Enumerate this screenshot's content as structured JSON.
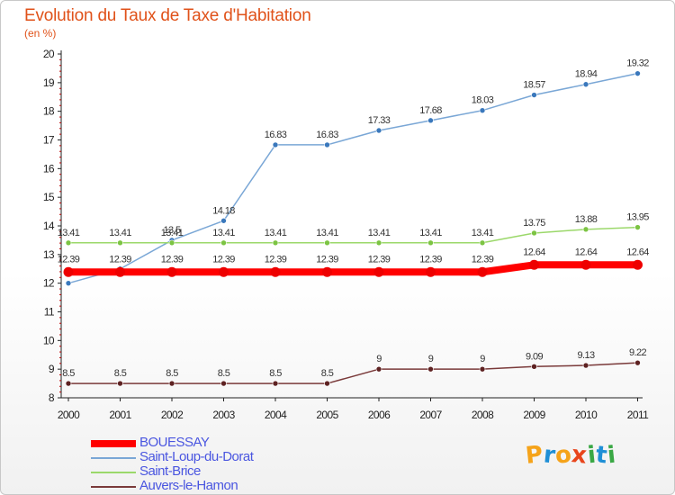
{
  "header": {
    "title": "Evolution du Taux de Taxe d'Habitation",
    "unit": "(en %)"
  },
  "logo": {
    "text": "Proxiti",
    "letters": [
      "P",
      "r",
      "o",
      "x",
      "i",
      "t",
      "i"
    ],
    "colors": [
      "#f5a31a",
      "#1f8fd6",
      "#f5a31a",
      "#e8451c",
      "#3aa845",
      "#1f8fd6",
      "#3aa845"
    ]
  },
  "chart_data": {
    "type": "line",
    "title": "Evolution du Taux de Taxe d'Habitation",
    "ylabel": "(en %)",
    "xlabel": "",
    "x": [
      2000,
      2001,
      2002,
      2003,
      2004,
      2005,
      2006,
      2007,
      2008,
      2009,
      2010,
      2011
    ],
    "ylim": [
      8,
      20
    ],
    "yticks": [
      8,
      9,
      10,
      11,
      12,
      13,
      14,
      15,
      16,
      17,
      18,
      19,
      20
    ],
    "grid": false,
    "legend_position": "bottom-left",
    "series": [
      {
        "name": "Saint-Loup-du-Dorat",
        "color": "#7aa7d6",
        "marker": "#3a78bc",
        "values": [
          12.0,
          12.5,
          13.5,
          14.18,
          16.83,
          16.83,
          17.33,
          17.68,
          18.03,
          18.57,
          18.94,
          19.32
        ],
        "labels": [
          "",
          "",
          "13.5",
          "14.18",
          "16.83",
          "16.83",
          "17.33",
          "17.68",
          "18.03",
          "18.57",
          "18.94",
          "19.32"
        ]
      },
      {
        "name": "Saint-Brice",
        "color": "#9bd86a",
        "marker": "#7cc443",
        "values": [
          13.41,
          13.41,
          13.41,
          13.41,
          13.41,
          13.41,
          13.41,
          13.41,
          13.41,
          13.75,
          13.88,
          13.95
        ],
        "labels": [
          "13.41",
          "13.41",
          "13.41",
          "13.41",
          "13.41",
          "13.41",
          "13.41",
          "13.41",
          "13.41",
          "13.75",
          "13.88",
          "13.95"
        ]
      },
      {
        "name": "BOUESSAY",
        "color": "#ff0000",
        "marker": "#ee0000",
        "values": [
          12.39,
          12.39,
          12.39,
          12.39,
          12.39,
          12.39,
          12.39,
          12.39,
          12.39,
          12.64,
          12.64,
          12.64
        ],
        "labels": [
          "12.39",
          "12.39",
          "12.39",
          "12.39",
          "12.39",
          "12.39",
          "12.39",
          "12.39",
          "12.39",
          "12.64",
          "12.64",
          "12.64"
        ]
      },
      {
        "name": "Auvers-le-Hamon",
        "color": "#7a3a3a",
        "marker": "#5e2222",
        "values": [
          8.5,
          8.5,
          8.5,
          8.5,
          8.5,
          8.5,
          9,
          9,
          9,
          9.09,
          9.13,
          9.22
        ],
        "labels": [
          "8.5",
          "8.5",
          "8.5",
          "8.5",
          "8.5",
          "8.5",
          "9",
          "9",
          "9",
          "9.09",
          "9.13",
          "9.22"
        ]
      }
    ],
    "legend": [
      "BOUESSAY",
      "Saint-Loup-du-Dorat",
      "Saint-Brice",
      "Auvers-le-Hamon"
    ]
  }
}
